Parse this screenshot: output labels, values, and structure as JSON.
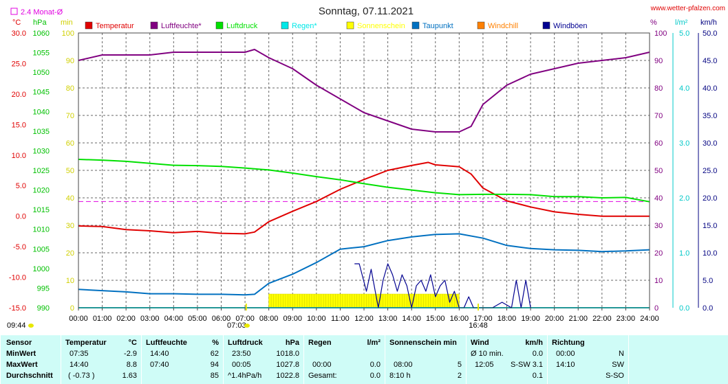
{
  "header": {
    "title": "Sonntag, 07.11.2021",
    "site": "www.wetter-pfalzen.com",
    "avg_note": "2.4 Monat-Ø"
  },
  "chart_data": {
    "type": "line",
    "title": "Sonntag, 07.11.2021",
    "x_ticks": [
      "00:00",
      "01:00",
      "02:00",
      "03:00",
      "04:00",
      "05:00",
      "06:00",
      "07:00",
      "08:00",
      "09:00",
      "10:00",
      "11:00",
      "12:00",
      "13:00",
      "14:00",
      "15:00",
      "16:00",
      "17:00",
      "18:00",
      "19:00",
      "20:00",
      "21:00",
      "22:00",
      "23:00",
      "24:00"
    ],
    "axes": {
      "temp": {
        "unit": "°C",
        "min": -15,
        "max": 30,
        "ticks": [
          "30.0",
          "25.0",
          "20.0",
          "15.0",
          "10.0",
          "5.0",
          "0.0",
          "-5.0",
          "-10.0",
          "-15.0"
        ]
      },
      "pressure": {
        "unit": "hPa",
        "min": 990,
        "max": 1060,
        "ticks": [
          "1060",
          "1055",
          "1050",
          "1045",
          "1040",
          "1035",
          "1030",
          "1025",
          "1020",
          "1015",
          "1010",
          "1005",
          "1000",
          "995",
          "990"
        ]
      },
      "sunshine": {
        "unit": "min",
        "min": 0,
        "max": 100,
        "ticks": [
          "100",
          "90",
          "80",
          "70",
          "60",
          "50",
          "40",
          "30",
          "20",
          "10",
          "0"
        ]
      },
      "humidity": {
        "unit": "%",
        "min": 0,
        "max": 100,
        "ticks": [
          "100",
          "90",
          "80",
          "70",
          "60",
          "50",
          "40",
          "30",
          "20",
          "10",
          "0"
        ]
      },
      "rain": {
        "unit": "l/m²",
        "min": 0,
        "max": 5,
        "ticks": [
          "5.0",
          "4.0",
          "3.0",
          "2.0",
          "1.0",
          "0.0"
        ]
      },
      "wind": {
        "unit": "km/h",
        "min": 0,
        "max": 50,
        "ticks": [
          "50.0",
          "45.0",
          "40.0",
          "35.0",
          "30.0",
          "25.0",
          "20.0",
          "15.0",
          "10.0",
          "5.0",
          "0.0"
        ]
      }
    },
    "legend": [
      {
        "name": "Temperatur",
        "color": "#e00000"
      },
      {
        "name": "Luftfeuchte*",
        "color": "#800080"
      },
      {
        "name": "Luftdruck",
        "color": "#00e000"
      },
      {
        "name": "Regen*",
        "color": "#00e8e8"
      },
      {
        "name": "Sonnenschein",
        "color": "#ffff00"
      },
      {
        "name": "Taupunkt",
        "color": "#0070c0"
      },
      {
        "name": "Windchill",
        "color": "#ff8000"
      },
      {
        "name": "Windböen",
        "color": "#000090"
      }
    ],
    "series": [
      {
        "name": "Temperatur",
        "axis": "temp",
        "color": "#e00000",
        "x": [
          0,
          1,
          2,
          3,
          4,
          5,
          6,
          7,
          7.4,
          8,
          9,
          10,
          11,
          12,
          13,
          14,
          14.7,
          15,
          16,
          16.5,
          17,
          18,
          19,
          20,
          21,
          22,
          23,
          24
        ],
        "y": [
          -1.6,
          -1.7,
          -2.2,
          -2.4,
          -2.7,
          -2.5,
          -2.8,
          -2.9,
          -2.6,
          -0.9,
          0.8,
          2.4,
          4.4,
          6.0,
          7.5,
          8.3,
          8.8,
          8.4,
          8.1,
          6.9,
          4.6,
          2.5,
          1.5,
          0.7,
          0.3,
          0.0,
          0.0,
          0.0
        ]
      },
      {
        "name": "Luftfeuchte*",
        "axis": "humidity",
        "color": "#800080",
        "x": [
          0,
          1,
          2,
          3,
          4,
          5,
          6,
          7,
          7.4,
          8,
          9,
          10,
          11,
          12,
          13,
          14,
          15,
          15.5,
          16,
          16.5,
          17,
          18,
          19,
          20,
          21,
          22,
          23,
          24
        ],
        "y": [
          90,
          92,
          92,
          92,
          93,
          93,
          93,
          93,
          94,
          91,
          87,
          81,
          76,
          71,
          68,
          65,
          64,
          64,
          64,
          66,
          74,
          81,
          85,
          87,
          89,
          90,
          91,
          93
        ]
      },
      {
        "name": "Luftdruck",
        "axis": "pressure",
        "color": "#00e000",
        "x": [
          0,
          1,
          2,
          3,
          4,
          5,
          6,
          7,
          8,
          9,
          10,
          11,
          12,
          13,
          14,
          15,
          16,
          17,
          18,
          19,
          20,
          21,
          22,
          23,
          24
        ],
        "y": [
          1027.8,
          1027.6,
          1027.3,
          1026.8,
          1026.3,
          1026.2,
          1026.0,
          1025.6,
          1025.1,
          1024.3,
          1023.4,
          1022.6,
          1021.6,
          1020.7,
          1020.0,
          1019.3,
          1018.8,
          1018.9,
          1018.9,
          1018.8,
          1018.3,
          1018.3,
          1018.0,
          1018.1,
          1017.0
        ]
      },
      {
        "name": "Regen*",
        "axis": "rain",
        "color": "#00e8e8",
        "x": [
          0,
          24
        ],
        "y": [
          0,
          0
        ]
      },
      {
        "name": "Taupunkt",
        "axis": "temp",
        "color": "#0070c0",
        "x": [
          0,
          1,
          2,
          3,
          4,
          5,
          6,
          7,
          7.4,
          8,
          9,
          10,
          11,
          12,
          13,
          14,
          15,
          16,
          17,
          18,
          19,
          20,
          21,
          22,
          23,
          24
        ],
        "y": [
          -12.0,
          -12.2,
          -12.4,
          -12.7,
          -12.7,
          -12.8,
          -12.8,
          -12.9,
          -12.8,
          -11.0,
          -9.5,
          -7.6,
          -5.4,
          -5.0,
          -4.0,
          -3.4,
          -3.0,
          -2.9,
          -3.6,
          -4.8,
          -5.3,
          -5.5,
          -5.6,
          -5.8,
          -5.7,
          -5.5
        ]
      },
      {
        "name": "Windböen",
        "axis": "wind",
        "color": "#000090",
        "x": [
          11.6,
          11.8,
          12.1,
          12.3,
          12.6,
          12.8,
          13.0,
          13.2,
          13.4,
          13.6,
          13.8,
          14.0,
          14.2,
          14.4,
          14.6,
          14.8,
          15.0,
          15.2,
          15.4,
          15.6,
          15.8,
          16.0,
          16.2,
          16.4,
          16.6,
          17.0,
          17.4,
          17.8,
          18.2,
          18.4,
          18.6,
          18.8,
          19.0
        ],
        "y": [
          8,
          8,
          3,
          7,
          0,
          5,
          8,
          6,
          3,
          6,
          4,
          0,
          4,
          5,
          3,
          6,
          2,
          4,
          5,
          1,
          3,
          0,
          0,
          2,
          0,
          0,
          0,
          1,
          0,
          5,
          0,
          5,
          0
        ]
      }
    ],
    "sunshine_periods": [
      {
        "from": 8.0,
        "to": 16.0,
        "value": 5
      }
    ],
    "reference_line": {
      "label": "2.4 Monat-Ø",
      "axis": "temp",
      "value": 2.4
    },
    "markers": {
      "sunrise": "07:03",
      "sunset": "16:48",
      "moon": "09:44"
    }
  },
  "table": {
    "headers": {
      "sensor": "Sensor",
      "temperature": "Temperatur",
      "temperature_unit": "°C",
      "humidity": "Luftfeuchte",
      "humidity_unit": "%",
      "pressure": "Luftdruck",
      "pressure_unit": "hPa",
      "rain": "Regen",
      "rain_unit": "l/m²",
      "sunshine": "Sonnenschein min",
      "wind": "Wind",
      "wind_unit": "km/h",
      "direction": "Richtung"
    },
    "rows": [
      {
        "label": "MinWert",
        "temp_time": "07:35",
        "temp_val": "-2.9",
        "hum_time": "14:40",
        "hum_val": "62",
        "pres_time": "23:50",
        "pres_val": "1018.0",
        "rain_time": "",
        "rain_val": "",
        "sun_time": "",
        "sun_val": "",
        "wind_time": "Ø 10 min.",
        "wind_dir": "",
        "wind_val": "0.0",
        "dir_time": "00:00",
        "dir_val": "N"
      },
      {
        "label": "MaxWert",
        "temp_time": "14:40",
        "temp_val": "8.8",
        "hum_time": "07:40",
        "hum_val": "94",
        "pres_time": "00:05",
        "pres_val": "1027.8",
        "rain_time": "00:00",
        "rain_val": "0.0",
        "sun_time": "08:00",
        "sun_val": "5",
        "wind_time": "12:05",
        "wind_dir": "S-SW",
        "wind_val": "3.1",
        "dir_time": "14:10",
        "dir_val": "SW"
      },
      {
        "label": "Durchschnitt",
        "temp_time": "( -0.73 )",
        "temp_val": "1.63",
        "hum_time": "",
        "hum_val": "85",
        "pres_time": "^1.4hPa/h",
        "pres_val": "1022.8",
        "rain_time": "Gesamt:",
        "rain_val": "0.0",
        "sun_time": "8:10 h",
        "sun_val": "2",
        "wind_time": "",
        "wind_dir": "",
        "wind_val": "0.1",
        "dir_time": "",
        "dir_val": "S-SO"
      }
    ]
  }
}
